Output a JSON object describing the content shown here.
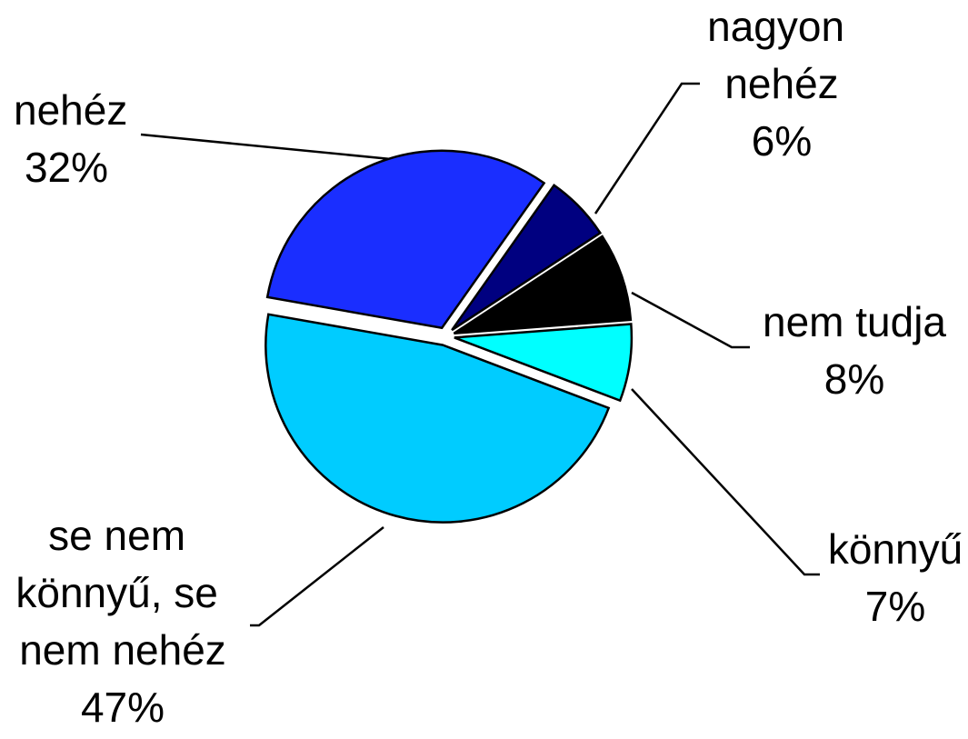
{
  "chart_data": {
    "type": "pie",
    "categories": [
      "nehéz",
      "nagyon nehéz",
      "nem tudja",
      "könnyű",
      "se nem könnyű, se nem nehéz"
    ],
    "values": [
      32,
      6,
      8,
      7,
      47
    ],
    "value_labels": [
      "32%",
      "6%",
      "8%",
      "7%",
      "47%"
    ],
    "colors": [
      "#1a2eff",
      "#000080",
      "#000000",
      "#00ffff",
      "#00ccff"
    ]
  }
}
